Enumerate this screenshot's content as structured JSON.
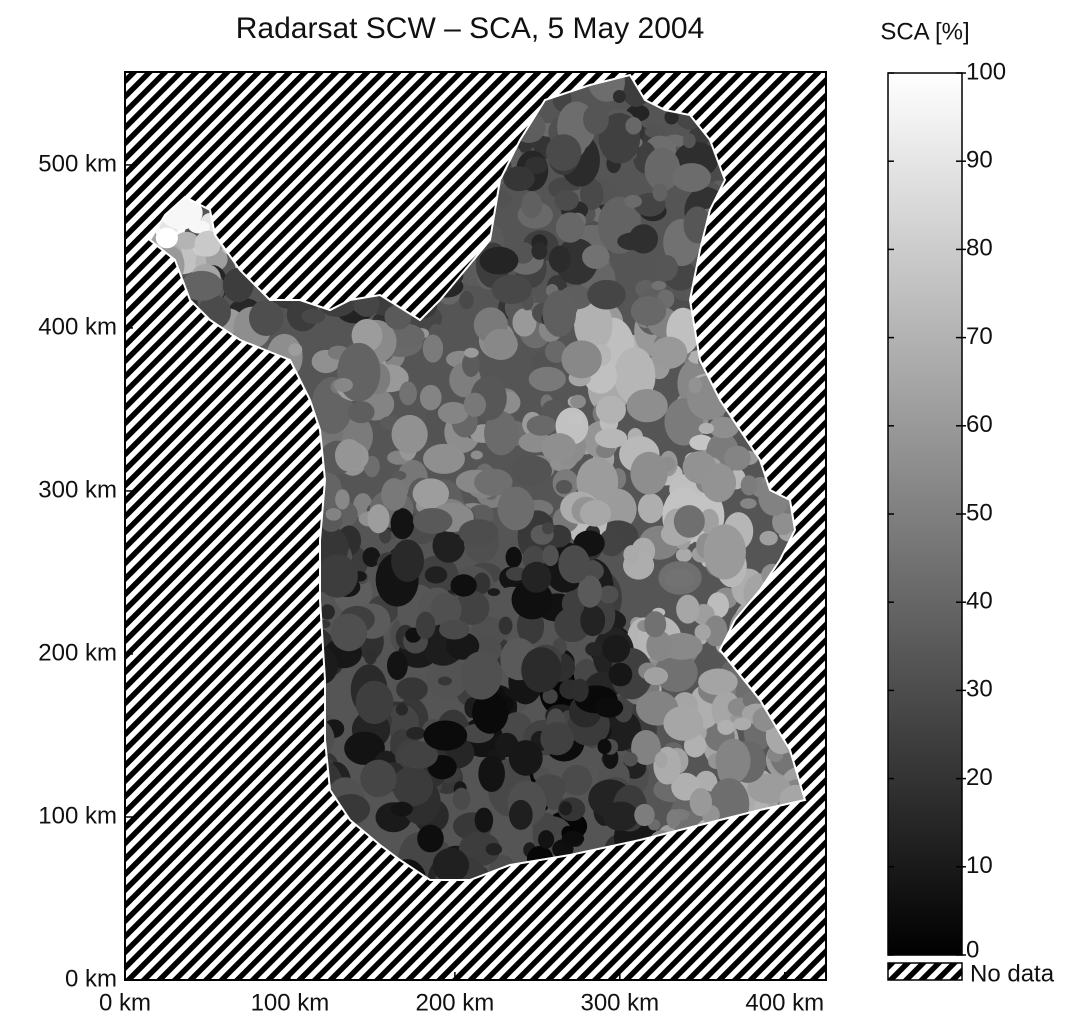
{
  "chart_data": {
    "type": "map",
    "title": "Radarsat SCW – SCA, 5 May 2004",
    "xlim": [
      0,
      425
    ],
    "ylim": [
      0,
      557
    ],
    "xticks": [
      {
        "value": 0,
        "label": "0 km"
      },
      {
        "value": 100,
        "label": "100 km"
      },
      {
        "value": 200,
        "label": "200 km"
      },
      {
        "value": 300,
        "label": "300 km"
      },
      {
        "value": 400,
        "label": "400 km"
      }
    ],
    "yticks": [
      {
        "value": 0,
        "label": "0 km"
      },
      {
        "value": 100,
        "label": "100 km"
      },
      {
        "value": 200,
        "label": "200 km"
      },
      {
        "value": 300,
        "label": "300 km"
      },
      {
        "value": 400,
        "label": "400 km"
      },
      {
        "value": 500,
        "label": "500 km"
      }
    ],
    "colorbar": {
      "title": "SCA [%]",
      "lim": [
        0,
        100
      ],
      "ticks": [
        0,
        10,
        20,
        30,
        40,
        50,
        60,
        70,
        80,
        90,
        100
      ],
      "colormap": [
        "#000000",
        "#ffffff"
      ],
      "no_data_label": "No data"
    }
  }
}
